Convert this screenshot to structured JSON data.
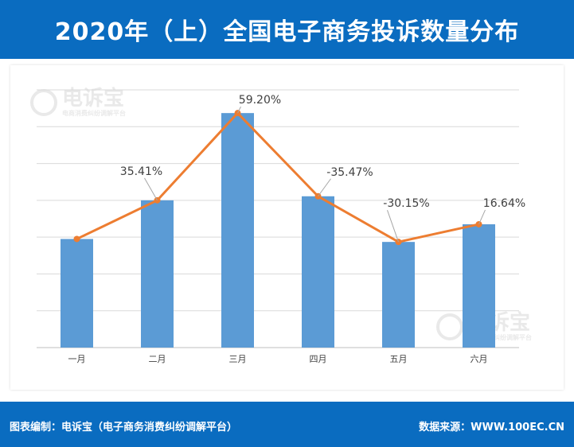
{
  "header": {
    "title": "2020年（上）全国电子商务投诉数量分布"
  },
  "footer": {
    "left_text": "图表编制：电诉宝（电子商务消费纠纷调解平台）",
    "right_text": "数据来源：WWW.100EC.CN"
  },
  "watermark": {
    "name": "电诉宝",
    "subtitle": "电商消费纠纷调解平台"
  },
  "colors": {
    "header_bg": "#0a6cc0",
    "bar": "#5b9bd5",
    "line": "#ed7d31",
    "grid": "#d9d9d9"
  },
  "chart_data": {
    "type": "bar",
    "title": "",
    "xlabel": "",
    "ylabel": "",
    "categories": [
      "一月",
      "二月",
      "三月",
      "四月",
      "五月",
      "六月"
    ],
    "series": [
      {
        "type": "bar",
        "values": [
          2.95,
          4.0,
          6.37,
          4.11,
          2.87,
          3.35
        ]
      },
      {
        "type": "line",
        "values": [
          2.95,
          4.0,
          6.37,
          4.11,
          2.87,
          3.35
        ],
        "labels": [
          "",
          "35.41%",
          "59.20%",
          "-35.47%",
          "-30.15%",
          "16.64%"
        ]
      }
    ],
    "ylim": [
      0,
      7
    ],
    "grid": true,
    "legend": "none"
  }
}
